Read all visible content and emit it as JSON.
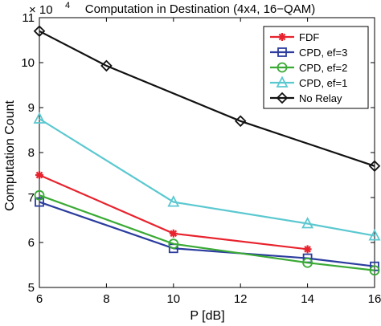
{
  "chart_data": {
    "type": "line",
    "title": "Computation in Destination (4x4, 16−QAM)",
    "xlabel": "P [dB]",
    "ylabel": "Computation Count",
    "exponent_base": "× 10",
    "exponent_power": "4",
    "xlim": [
      6,
      16
    ],
    "ylim": [
      5,
      11
    ],
    "x_ticks": [
      6,
      8,
      10,
      12,
      14,
      16
    ],
    "y_ticks": [
      5,
      6,
      7,
      8,
      9,
      10,
      11
    ],
    "grid": false,
    "legend_position": "top-right",
    "series": [
      {
        "name": "FDF",
        "color": "#e8232e",
        "marker": "asterisk",
        "x": [
          6,
          10,
          14
        ],
        "values": [
          7.5,
          6.2,
          5.85
        ]
      },
      {
        "name": "CPD, ef=3",
        "color": "#2b3c9e",
        "marker": "square",
        "x": [
          6,
          10,
          14,
          16
        ],
        "values": [
          6.9,
          5.87,
          5.65,
          5.47
        ]
      },
      {
        "name": "CPD, ef=2",
        "color": "#3aaa35",
        "marker": "circle",
        "x": [
          6,
          10,
          14,
          16
        ],
        "values": [
          7.05,
          5.97,
          5.55,
          5.38
        ]
      },
      {
        "name": "CPD, ef=1",
        "color": "#5bc8d0",
        "marker": "triangle",
        "x": [
          6,
          10,
          14,
          16
        ],
        "values": [
          8.75,
          6.9,
          6.42,
          6.15
        ]
      },
      {
        "name": "No Relay",
        "color": "#111111",
        "marker": "diamond",
        "x": [
          6,
          8,
          12,
          16
        ],
        "values": [
          10.7,
          9.93,
          8.7,
          7.7
        ]
      }
    ]
  }
}
